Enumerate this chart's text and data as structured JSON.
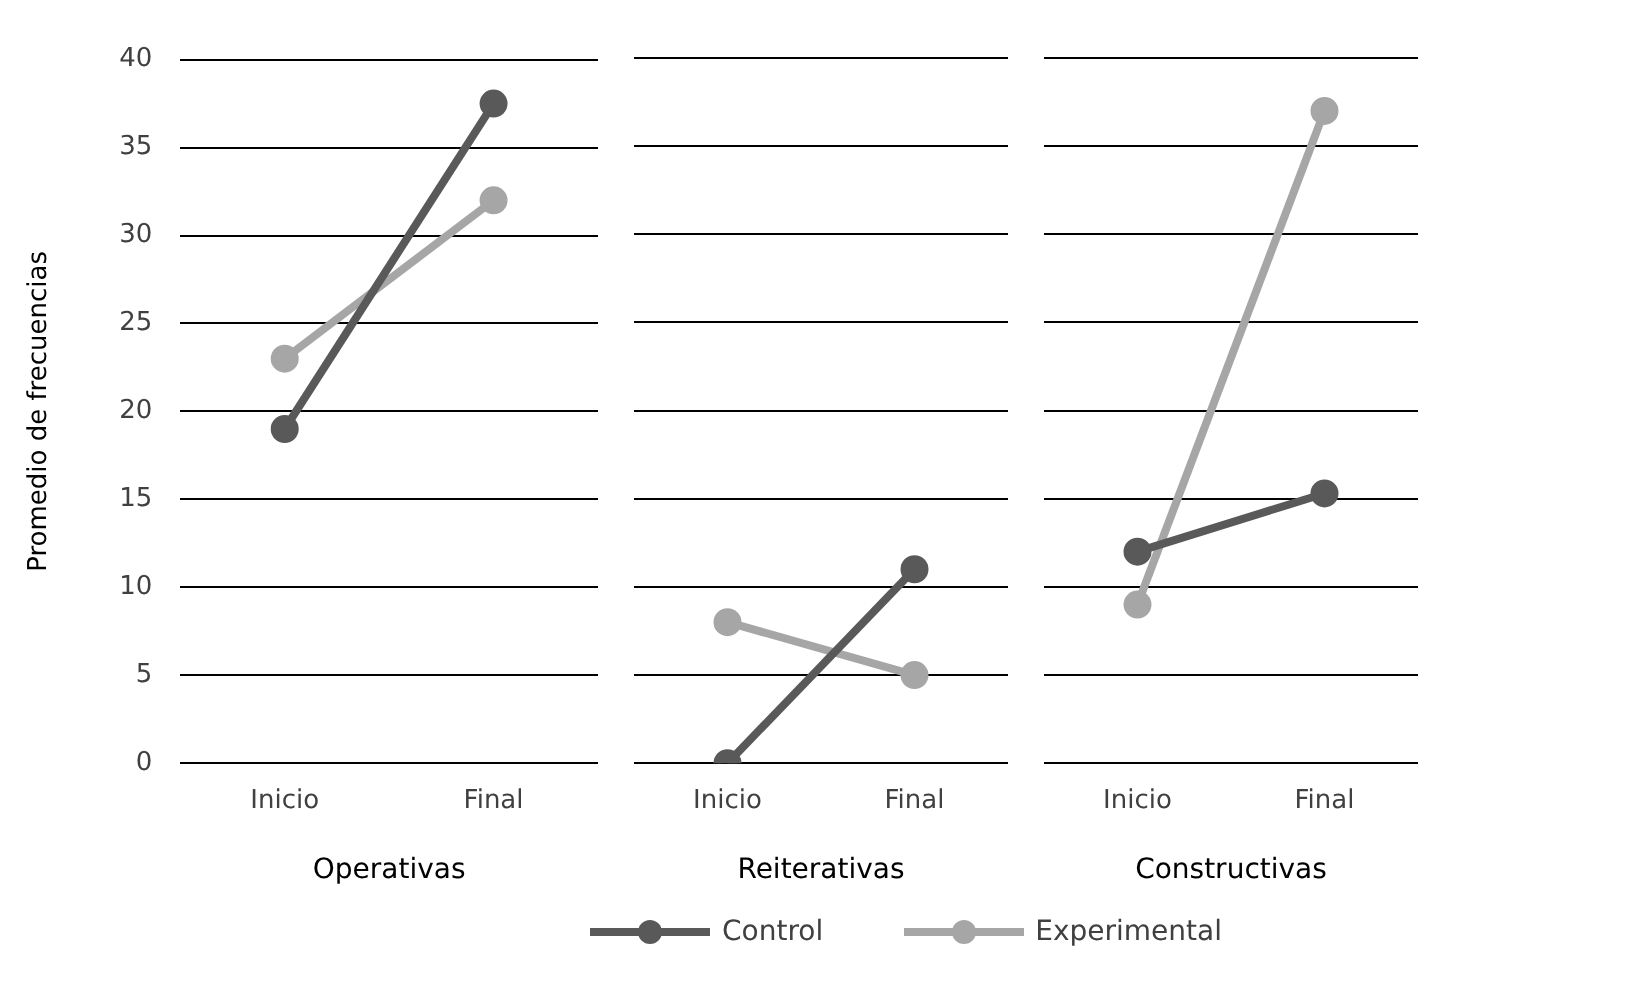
{
  "chart_data": [
    {
      "type": "line",
      "categories": [
        "Inicio",
        "Final"
      ],
      "xlabel": "Operativas",
      "ylabel": "Promedio de frecuencias",
      "ylim": [
        0,
        40
      ],
      "yticks": [
        0,
        5,
        10,
        15,
        20,
        25,
        30,
        35,
        40
      ],
      "grid": "y",
      "marker": "circle",
      "legend": "bottom",
      "series": [
        {
          "name": "Control",
          "color": "#595959",
          "values": [
            19,
            37.5
          ]
        },
        {
          "name": "Experimental",
          "color": "#a6a6a6",
          "values": [
            23,
            32
          ]
        }
      ]
    },
    {
      "type": "line",
      "categories": [
        "Inicio",
        "Final"
      ],
      "xlabel": "Reiterativas",
      "ylim": [
        0,
        40
      ],
      "yticks": [
        0,
        5,
        10,
        15,
        20,
        25,
        30,
        35,
        40
      ],
      "grid": "y",
      "marker": "circle",
      "tick_labels": "x",
      "series": [
        {
          "color": "#595959",
          "values": [
            0,
            11
          ]
        },
        {
          "color": "#a6a6a6",
          "values": [
            8,
            5
          ]
        }
      ]
    },
    {
      "type": "line",
      "categories": [
        "Inicio",
        "Final"
      ],
      "xlabel": "Constructivas",
      "ylim": [
        0,
        40
      ],
      "yticks": [
        0,
        5,
        10,
        15,
        20,
        25,
        30,
        35,
        40
      ],
      "grid": "y",
      "marker": "circle",
      "tick_labels": "x",
      "series": [
        {
          "color": "#595959",
          "values": [
            12,
            15.3
          ]
        },
        {
          "color": "#a6a6a6",
          "values": [
            9,
            37
          ]
        }
      ]
    }
  ]
}
